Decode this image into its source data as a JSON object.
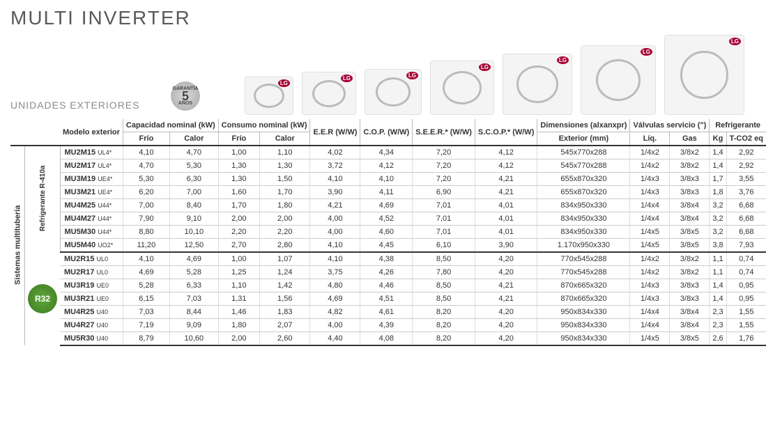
{
  "title": "MULTI INVERTER",
  "subtitle": "UNIDADES EXTERIORES",
  "warranty": {
    "top": "GARANTÍA",
    "num": "5",
    "bottom": "AÑOS"
  },
  "units_images": [
    {
      "w": 70,
      "h": 55
    },
    {
      "w": 78,
      "h": 62
    },
    {
      "w": 82,
      "h": 66
    },
    {
      "w": 92,
      "h": 78
    },
    {
      "w": 100,
      "h": 88
    },
    {
      "w": 108,
      "h": 100
    },
    {
      "w": 115,
      "h": 115
    }
  ],
  "lg_label": "LG",
  "columns": {
    "modelo": "Modelo exterior",
    "capacidad": "Capacidad nominal (kW)",
    "consumo": "Consumo nominal (kW)",
    "frio": "Frío",
    "calor": "Calor",
    "eer": "E.E.R (W/W)",
    "cop": "C.O.P. (W/W)",
    "seer": "S.E.E.R.* (W/W)",
    "scop": "S.C.O.P.* (W/W)",
    "dim": "Dimensiones (alxanxpr)",
    "dim_sub": "Exterior (mm)",
    "valv": "Válvulas servicio (\")",
    "liq": "Líq.",
    "gas": "Gas",
    "refr": "Refrigerante",
    "kg": "Kg",
    "tco2": "T-CO2 eq"
  },
  "side_main": "Sistemas multitubería",
  "side_g1": "Refrigerante R-410a",
  "r32_label": "R32",
  "groups": [
    {
      "rows": [
        {
          "model": "MU2M15",
          "suf": "UL4*",
          "cf": "4,10",
          "cc": "4,70",
          "pf": "1,00",
          "pc": "1,10",
          "eer": "4,02",
          "cop": "4,34",
          "seer": "7,20",
          "scop": "4,12",
          "dim": "545x770x288",
          "liq": "1/4x2",
          "gas": "3/8x2",
          "kg": "1,4",
          "tco2": "2,92"
        },
        {
          "model": "MU2M17",
          "suf": "UL4*",
          "cf": "4,70",
          "cc": "5,30",
          "pf": "1,30",
          "pc": "1,30",
          "eer": "3,72",
          "cop": "4,12",
          "seer": "7,20",
          "scop": "4,12",
          "dim": "545x770x288",
          "liq": "1/4x2",
          "gas": "3/8x2",
          "kg": "1,4",
          "tco2": "2,92"
        },
        {
          "model": "MU3M19",
          "suf": "UE4*",
          "cf": "5,30",
          "cc": "6,30",
          "pf": "1,30",
          "pc": "1,50",
          "eer": "4,10",
          "cop": "4,10",
          "seer": "7,20",
          "scop": "4,21",
          "dim": "655x870x320",
          "liq": "1/4x3",
          "gas": "3/8x3",
          "kg": "1,7",
          "tco2": "3,55"
        },
        {
          "model": "MU3M21",
          "suf": "UE4*",
          "cf": "6,20",
          "cc": "7,00",
          "pf": "1,60",
          "pc": "1,70",
          "eer": "3,90",
          "cop": "4,11",
          "seer": "6,90",
          "scop": "4,21",
          "dim": "655x870x320",
          "liq": "1/4x3",
          "gas": "3/8x3",
          "kg": "1,8",
          "tco2": "3,76"
        },
        {
          "model": "MU4M25",
          "suf": "U44*",
          "cf": "7,00",
          "cc": "8,40",
          "pf": "1,70",
          "pc": "1,80",
          "eer": "4,21",
          "cop": "4,69",
          "seer": "7,01",
          "scop": "4,01",
          "dim": "834x950x330",
          "liq": "1/4x4",
          "gas": "3/8x4",
          "kg": "3,2",
          "tco2": "6,68"
        },
        {
          "model": "MU4M27",
          "suf": "U44*",
          "cf": "7,90",
          "cc": "9,10",
          "pf": "2,00",
          "pc": "2,00",
          "eer": "4,00",
          "cop": "4,52",
          "seer": "7,01",
          "scop": "4,01",
          "dim": "834x950x330",
          "liq": "1/4x4",
          "gas": "3/8x4",
          "kg": "3,2",
          "tco2": "6,68"
        },
        {
          "model": "MU5M30",
          "suf": "U44*",
          "cf": "8,80",
          "cc": "10,10",
          "pf": "2,20",
          "pc": "2,20",
          "eer": "4,00",
          "cop": "4,60",
          "seer": "7,01",
          "scop": "4,01",
          "dim": "834x950x330",
          "liq": "1/4x5",
          "gas": "3/8x5",
          "kg": "3,2",
          "tco2": "6,68"
        },
        {
          "model": "MU5M40",
          "suf": "UO2*",
          "cf": "11,20",
          "cc": "12,50",
          "pf": "2,70",
          "pc": "2,80",
          "eer": "4,10",
          "cop": "4,45",
          "seer": "6,10",
          "scop": "3,90",
          "dim": "1.170x950x330",
          "liq": "1/4x5",
          "gas": "3/8x5",
          "kg": "3,8",
          "tco2": "7,93"
        }
      ]
    },
    {
      "rows": [
        {
          "model": "MU2R15",
          "suf": "UL0",
          "cf": "4,10",
          "cc": "4,69",
          "pf": "1,00",
          "pc": "1,07",
          "eer": "4,10",
          "cop": "4,38",
          "seer": "8,50",
          "scop": "4,20",
          "dim": "770x545x288",
          "liq": "1/4x2",
          "gas": "3/8x2",
          "kg": "1,1",
          "tco2": "0,74"
        },
        {
          "model": "MU2R17",
          "suf": "UL0",
          "cf": "4,69",
          "cc": "5,28",
          "pf": "1,25",
          "pc": "1,24",
          "eer": "3,75",
          "cop": "4,26",
          "seer": "7,80",
          "scop": "4,20",
          "dim": "770x545x288",
          "liq": "1/4x2",
          "gas": "3/8x2",
          "kg": "1,1",
          "tco2": "0,74"
        },
        {
          "model": "MU3R19",
          "suf": "UE0",
          "cf": "5,28",
          "cc": "6,33",
          "pf": "1,10",
          "pc": "1,42",
          "eer": "4,80",
          "cop": "4,46",
          "seer": "8,50",
          "scop": "4,21",
          "dim": "870x665x320",
          "liq": "1/4x3",
          "gas": "3/8x3",
          "kg": "1,4",
          "tco2": "0,95"
        },
        {
          "model": "MU3R21",
          "suf": "UE0",
          "cf": "6,15",
          "cc": "7,03",
          "pf": "1,31",
          "pc": "1,56",
          "eer": "4,69",
          "cop": "4,51",
          "seer": "8,50",
          "scop": "4,21",
          "dim": "870x665x320",
          "liq": "1/4x3",
          "gas": "3/8x3",
          "kg": "1,4",
          "tco2": "0,95"
        },
        {
          "model": "MU4R25",
          "suf": "U40",
          "cf": "7,03",
          "cc": "8,44",
          "pf": "1,46",
          "pc": "1,83",
          "eer": "4,82",
          "cop": "4,61",
          "seer": "8,20",
          "scop": "4,20",
          "dim": "950x834x330",
          "liq": "1/4x4",
          "gas": "3/8x4",
          "kg": "2,3",
          "tco2": "1,55"
        },
        {
          "model": "MU4R27",
          "suf": "U40",
          "cf": "7,19",
          "cc": "9,09",
          "pf": "1,80",
          "pc": "2,07",
          "eer": "4,00",
          "cop": "4,39",
          "seer": "8,20",
          "scop": "4,20",
          "dim": "950x834x330",
          "liq": "1/4x4",
          "gas": "3/8x4",
          "kg": "2,3",
          "tco2": "1,55"
        },
        {
          "model": "MU5R30",
          "suf": "U40",
          "cf": "8,79",
          "cc": "10,60",
          "pf": "2,00",
          "pc": "2,60",
          "eer": "4,40",
          "cop": "4,08",
          "seer": "8,20",
          "scop": "4,20",
          "dim": "950x834x330",
          "liq": "1/4x5",
          "gas": "3/8x5",
          "kg": "2,6",
          "tco2": "1,76"
        }
      ]
    }
  ],
  "colors": {
    "title": "#5a5a5a",
    "subtitle": "#8a8a8a",
    "text": "#333333",
    "border_dark": "#333333",
    "border_light": "#cccccc",
    "lg_red": "#a50034",
    "r32_green": "#5fa83c"
  },
  "fontsize": {
    "title": 28,
    "subtitle": 14,
    "table": 11
  }
}
